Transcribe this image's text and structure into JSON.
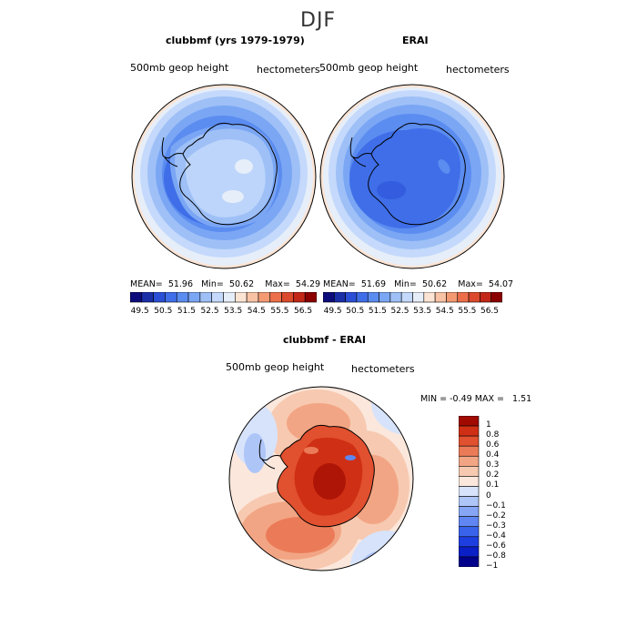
{
  "main_title": "DJF",
  "palette": {
    "ref_seq": [
      "#0c0c7a",
      "#1a2ea8",
      "#2a4fd6",
      "#3f6ee8",
      "#5b8cf0",
      "#7aa6f4",
      "#9ec0f7",
      "#c4d9fb",
      "#e6eef9",
      "#fce4d4",
      "#f8c2a4",
      "#f39a73",
      "#ec6f4a",
      "#db4a2c",
      "#c22717",
      "#8b0000"
    ],
    "diff_seq": [
      "#00008b",
      "#0b1fc6",
      "#1e3fe0",
      "#3a63ec",
      "#5f86f2",
      "#86a6f5",
      "#aec5f8",
      "#d7e3fb",
      "#fbe7dc",
      "#f7c9b0",
      "#f2a584",
      "#eb7b58",
      "#e1502f",
      "#cf2f14",
      "#a10a00"
    ]
  },
  "chart_data": [
    {
      "type": "heatmap",
      "projection": "south-polar-stereographic",
      "title": "clubbmf (yrs 1979-1979)",
      "left_label": "500mb geop height",
      "right_label": "hectometers",
      "stats": {
        "mean_label": "MEAN=",
        "mean": "51.96",
        "min_label": "Min=",
        "min": "50.62",
        "max_label": "Max=",
        "max": "54.29"
      },
      "levels": [
        "49.5",
        "50.5",
        "51.5",
        "52.5",
        "53.5",
        "54.5",
        "55.5",
        "56.5"
      ]
    },
    {
      "type": "heatmap",
      "projection": "south-polar-stereographic",
      "title": "ERAI",
      "left_label": "500mb geop height",
      "right_label": "hectometers",
      "stats": {
        "mean_label": "MEAN=",
        "mean": "51.69",
        "min_label": "Min=",
        "min": "50.62",
        "max_label": "Max=",
        "max": "54.07"
      },
      "levels": [
        "49.5",
        "50.5",
        "51.5",
        "52.5",
        "53.5",
        "54.5",
        "55.5",
        "56.5"
      ]
    },
    {
      "type": "heatmap",
      "projection": "south-polar-stereographic",
      "title": "clubbmf - ERAI",
      "left_label": "500mb geop height",
      "right_label": "hectometers",
      "stats": {
        "min_label": "MIN =",
        "min": "-0.49",
        "max_label": "MAX =",
        "max": "1.51"
      },
      "levels": [
        "1",
        "0.8",
        "0.6",
        "0.4",
        "0.3",
        "0.2",
        "0.1",
        "0",
        "−0.1",
        "−0.2",
        "−0.3",
        "−0.4",
        "−0.6",
        "−0.8",
        "−1"
      ]
    }
  ]
}
